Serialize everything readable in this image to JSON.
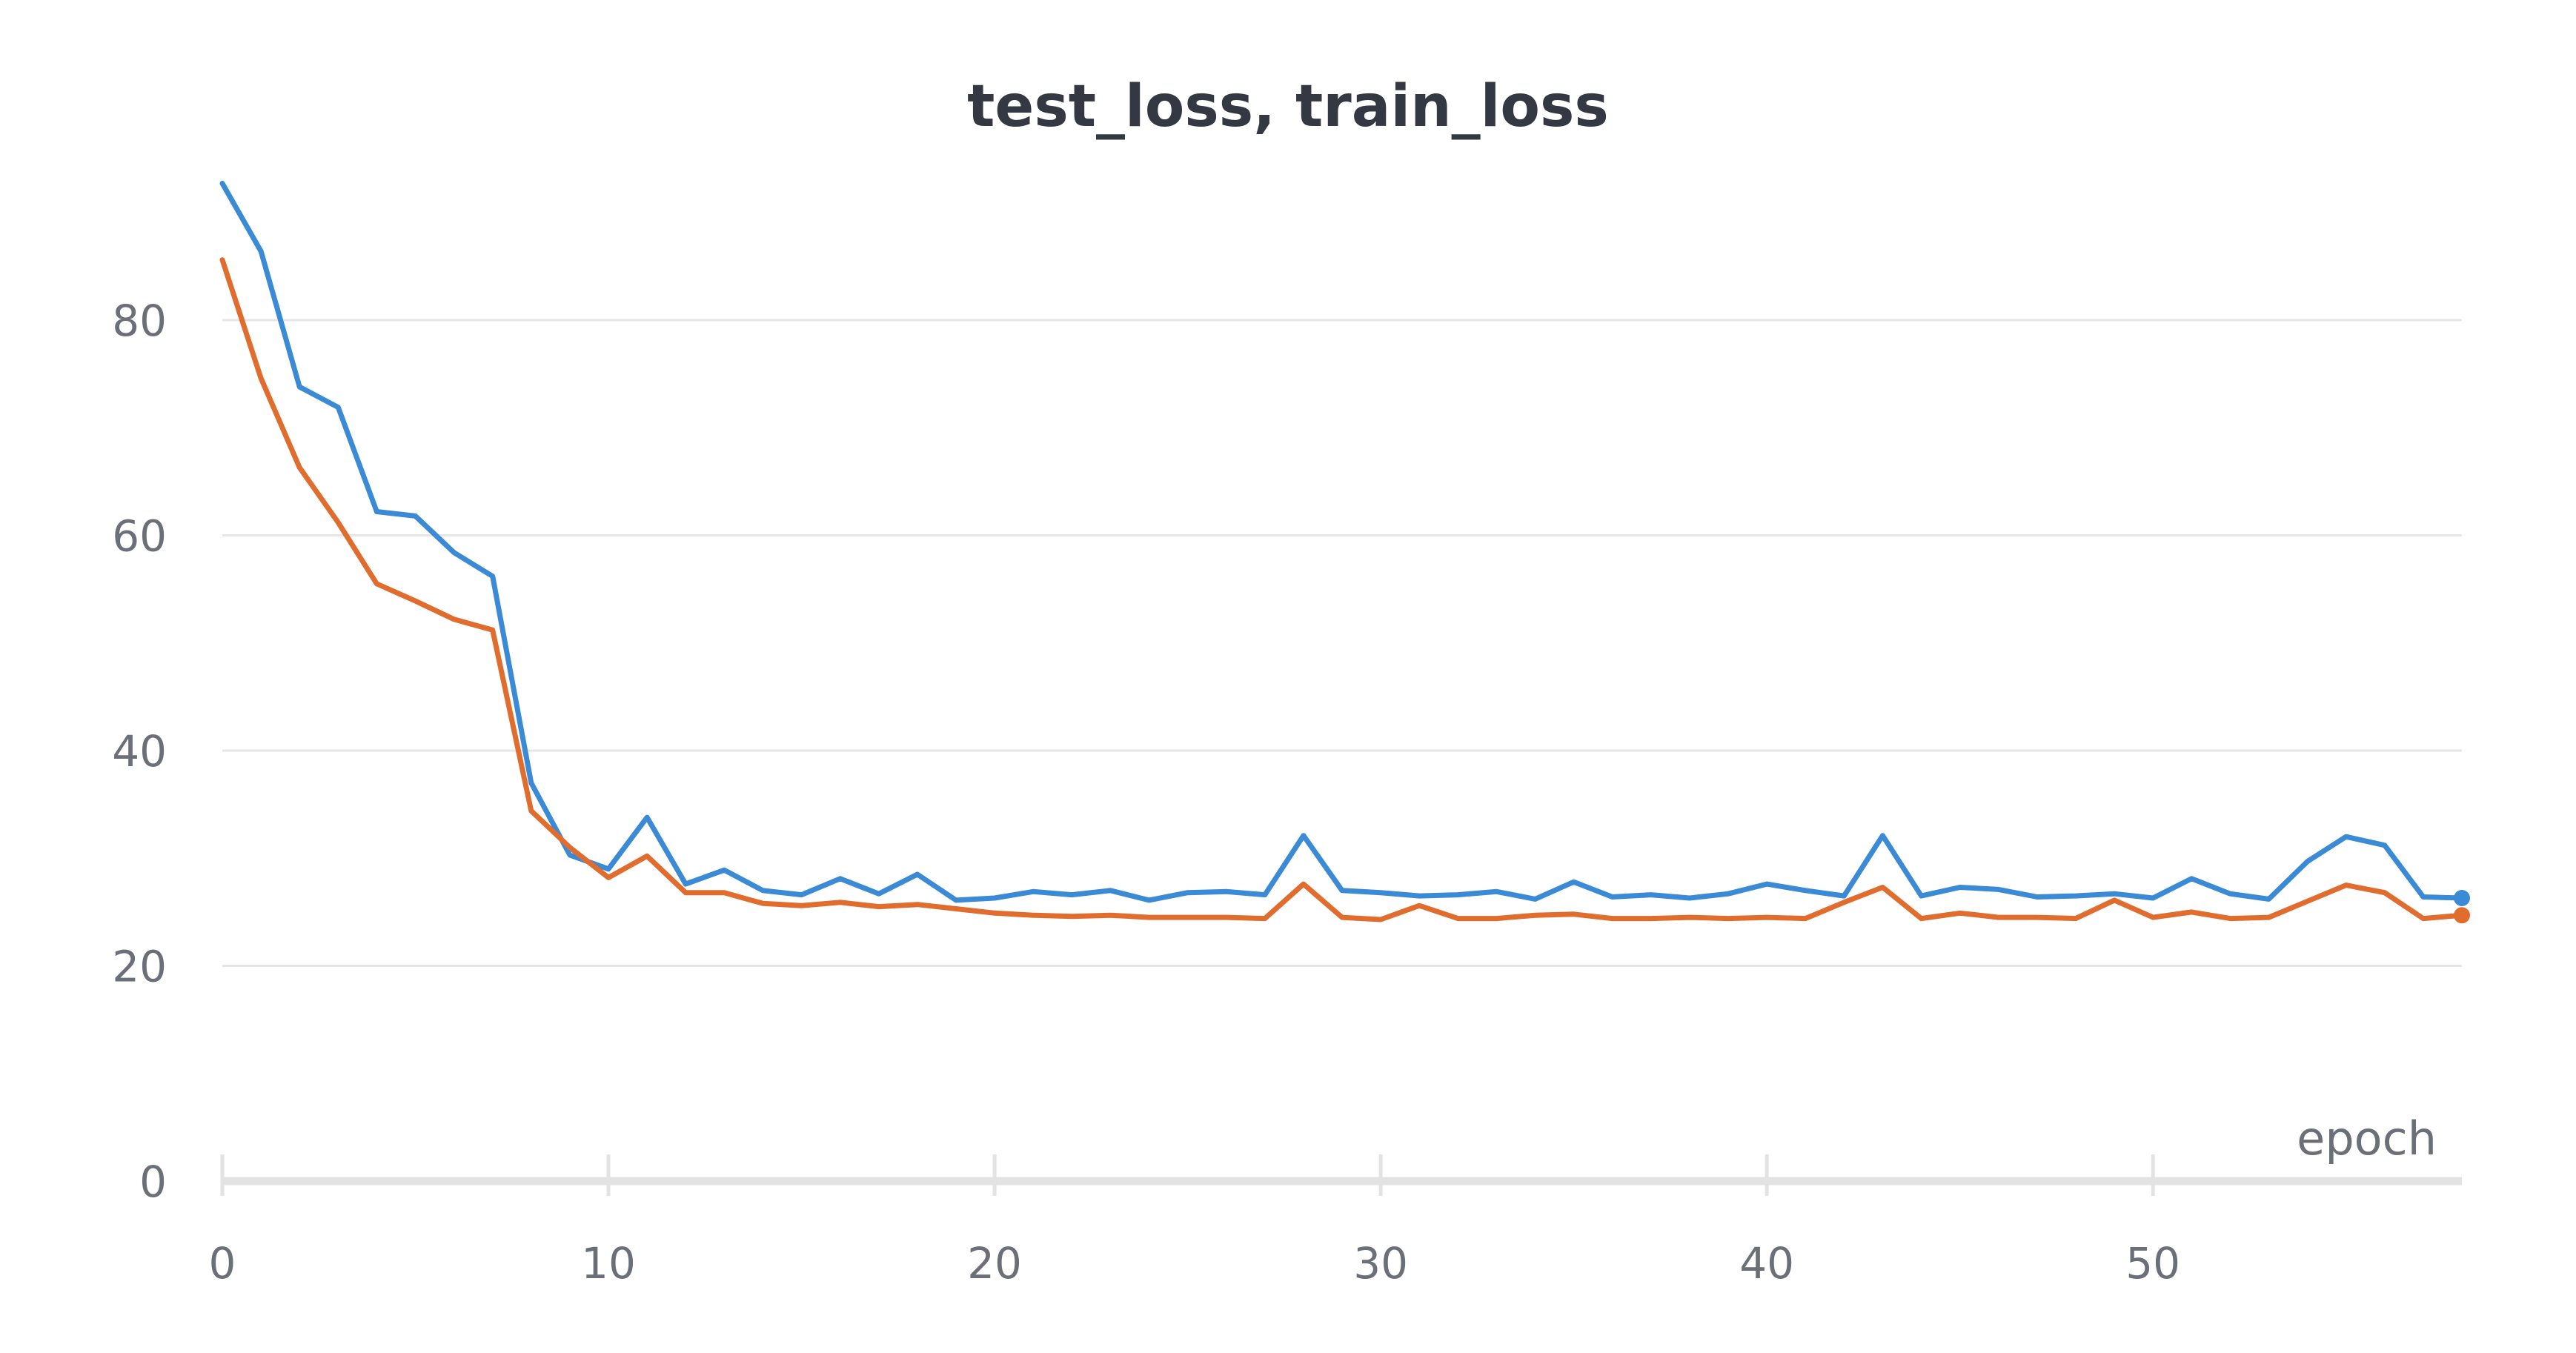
{
  "chart_data": {
    "type": "line",
    "title": "test_loss, train_loss",
    "xlabel": "epoch",
    "ylabel": "",
    "xlim": [
      0,
      58
    ],
    "ylim": [
      0,
      100
    ],
    "x_ticks": [
      0,
      10,
      20,
      30,
      40,
      50
    ],
    "y_ticks": [
      0,
      20,
      40,
      60,
      80
    ],
    "grid": true,
    "legend": "none",
    "x": [
      0,
      1,
      2,
      3,
      4,
      5,
      6,
      7,
      8,
      9,
      10,
      11,
      12,
      13,
      14,
      15,
      16,
      17,
      18,
      19,
      20,
      21,
      22,
      23,
      24,
      25,
      26,
      27,
      28,
      29,
      30,
      31,
      32,
      33,
      34,
      35,
      36,
      37,
      38,
      39,
      40,
      41,
      42,
      43,
      44,
      45,
      46,
      47,
      48,
      49,
      50,
      51,
      52,
      53,
      54,
      55,
      56,
      57,
      58
    ],
    "series": [
      {
        "color": "#3a8ad6",
        "values": [
          92.7,
          86.4,
          73.8,
          71.9,
          62.2,
          61.8,
          58.4,
          56.2,
          37.0,
          30.3,
          29.0,
          33.8,
          27.6,
          28.9,
          27.0,
          26.6,
          28.1,
          26.7,
          28.5,
          26.1,
          26.3,
          26.9,
          26.6,
          27.0,
          26.1,
          26.8,
          26.9,
          26.6,
          32.1,
          27.0,
          26.8,
          26.5,
          26.6,
          26.9,
          26.2,
          27.8,
          26.4,
          26.6,
          26.3,
          26.7,
          27.6,
          27.0,
          26.5,
          32.1,
          26.5,
          27.3,
          27.1,
          26.4,
          26.5,
          26.7,
          26.3,
          28.1,
          26.7,
          26.2,
          29.7,
          32.0,
          31.2,
          26.4,
          26.3
        ]
      },
      {
        "color": "#e06c2e",
        "values": [
          85.6,
          74.6,
          66.3,
          61.2,
          55.5,
          53.9,
          52.2,
          51.2,
          34.4,
          31.0,
          28.2,
          30.2,
          26.8,
          26.8,
          25.8,
          25.6,
          25.9,
          25.5,
          25.7,
          25.3,
          24.9,
          24.7,
          24.6,
          24.7,
          24.5,
          24.5,
          24.5,
          24.4,
          27.6,
          24.5,
          24.3,
          25.6,
          24.4,
          24.4,
          24.7,
          24.8,
          24.4,
          24.4,
          24.5,
          24.4,
          24.5,
          24.4,
          25.9,
          27.3,
          24.4,
          24.9,
          24.5,
          24.5,
          24.4,
          26.1,
          24.5,
          25.0,
          24.4,
          24.5,
          26.0,
          27.5,
          26.8,
          24.4,
          24.7
        ]
      }
    ]
  }
}
